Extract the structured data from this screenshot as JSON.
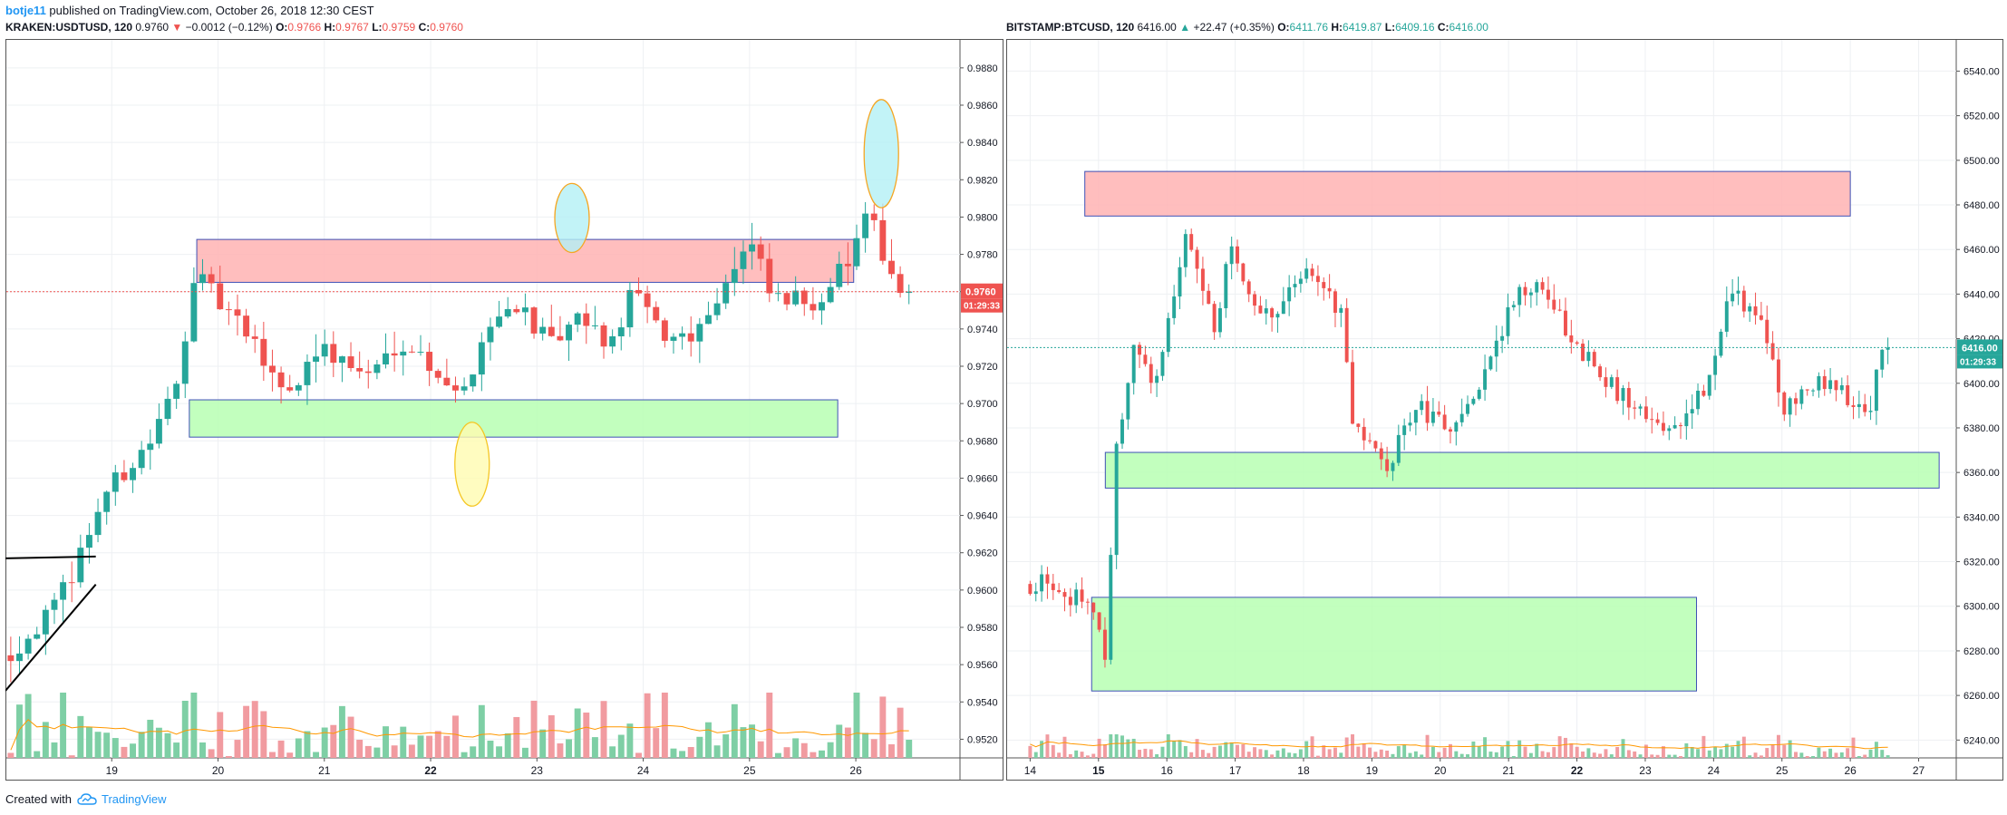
{
  "header": {
    "author": "botje11",
    "published": " published on TradingView.com, October 26, 2018 12:30 CEST"
  },
  "left_legend": {
    "symbol": "KRAKEN:USDTUSD, 120",
    "last": "0.9760",
    "change": "−0.0012 (−0.12%)",
    "o_label": "O:",
    "o": "0.9766",
    "h_label": "H:",
    "h": "0.9767",
    "l_label": "L:",
    "l": "0.9759",
    "c_label": "C:",
    "c": "0.9760",
    "direction": "down"
  },
  "right_legend": {
    "symbol": "BITSTAMP:BTCUSD, 120",
    "last": "6416.00",
    "change": "+22.47 (+0.35%)",
    "o_label": "O:",
    "o": "6411.76",
    "h_label": "H:",
    "h": "6419.87",
    "l_label": "L:",
    "l": "6409.16",
    "c_label": "C:",
    "c": "6416.00",
    "direction": "up"
  },
  "footer": {
    "created_with": "Created with",
    "brand": "TradingView"
  },
  "colors": {
    "up": "#26a69a",
    "down": "#ef5350",
    "up_volume": "#7ecfa5",
    "down_volume": "#f19ba0",
    "resistance_fill": "#ffb3b3",
    "support_fill": "#b7ffb3",
    "zone_border": "#3f51b5",
    "ma_line": "#ff9800",
    "grid": "#eef0f3"
  },
  "chart_data": [
    {
      "type": "candlestick",
      "symbol": "KRAKEN:USDTUSD",
      "interval": "120",
      "x_ticks": [
        "19",
        "20",
        "21",
        "22",
        "23",
        "24",
        "25",
        "26"
      ],
      "bold_x_ticks": [
        "22"
      ],
      "y_ticks": [
        "0.9520",
        "0.9540",
        "0.9560",
        "0.9580",
        "0.9600",
        "0.9620",
        "0.9640",
        "0.9660",
        "0.9680",
        "0.9700",
        "0.9720",
        "0.9740",
        "0.9760",
        "0.9780",
        "0.9800",
        "0.9820",
        "0.9840",
        "0.9860",
        "0.9880"
      ],
      "ylim": [
        0.951,
        0.9895
      ],
      "last_price_label": "0.9760",
      "countdown_label": "01:29:33",
      "price_path": [
        {
          "x": 18.1,
          "y": 0.9565
        },
        {
          "x": 18.55,
          "y": 0.959
        },
        {
          "x": 18.75,
          "y": 0.9615
        },
        {
          "x": 19.0,
          "y": 0.965
        },
        {
          "x": 19.45,
          "y": 0.968
        },
        {
          "x": 19.7,
          "y": 0.971
        },
        {
          "x": 19.85,
          "y": 0.977
        },
        {
          "x": 20.3,
          "y": 0.974
        },
        {
          "x": 20.75,
          "y": 0.9705
        },
        {
          "x": 21.0,
          "y": 0.973
        },
        {
          "x": 21.5,
          "y": 0.9715
        },
        {
          "x": 21.8,
          "y": 0.9735
        },
        {
          "x": 22.2,
          "y": 0.9715
        },
        {
          "x": 22.35,
          "y": 0.97
        },
        {
          "x": 22.6,
          "y": 0.974
        },
        {
          "x": 22.9,
          "y": 0.9755
        },
        {
          "x": 23.2,
          "y": 0.973
        },
        {
          "x": 23.5,
          "y": 0.9745
        },
        {
          "x": 23.8,
          "y": 0.973
        },
        {
          "x": 23.95,
          "y": 0.976
        },
        {
          "x": 24.3,
          "y": 0.9735
        },
        {
          "x": 24.6,
          "y": 0.974
        },
        {
          "x": 24.9,
          "y": 0.977
        },
        {
          "x": 25.1,
          "y": 0.9785
        },
        {
          "x": 25.3,
          "y": 0.9755
        },
        {
          "x": 25.7,
          "y": 0.9755
        },
        {
          "x": 26.0,
          "y": 0.9775
        },
        {
          "x": 26.2,
          "y": 0.98
        },
        {
          "x": 26.5,
          "y": 0.976
        }
      ],
      "resistance_zone": {
        "x": [
          19.8,
          25.98
        ],
        "y": [
          0.9765,
          0.9788
        ]
      },
      "support_zone": {
        "x": [
          19.73,
          25.83
        ],
        "y": [
          0.9682,
          0.9702
        ]
      },
      "highlight_ellipses": [
        {
          "kind": "top",
          "x": 23.33,
          "y_range": [
            0.9781,
            0.9818
          ],
          "fill": "#b3f0f5",
          "stroke": "#f5a623"
        },
        {
          "kind": "top",
          "x": 26.24,
          "y_range": [
            0.9805,
            0.9863
          ],
          "fill": "#b3f0f5",
          "stroke": "#f5a623"
        },
        {
          "kind": "bottom",
          "x": 22.39,
          "y_range": [
            0.9645,
            0.969
          ],
          "fill": "#fffbb0",
          "stroke": "#f5c623"
        }
      ],
      "trend_lines": [
        {
          "from": [
            18.0,
            0.9617
          ],
          "to": [
            18.85,
            0.9618
          ]
        },
        {
          "from": [
            18.0,
            0.9546
          ],
          "to": [
            18.85,
            0.9603
          ]
        }
      ]
    },
    {
      "type": "candlestick",
      "symbol": "BITSTAMP:BTCUSD",
      "interval": "120",
      "x_ticks": [
        "14",
        "15",
        "16",
        "17",
        "18",
        "19",
        "20",
        "21",
        "22",
        "23",
        "24",
        "25",
        "26",
        "27"
      ],
      "bold_x_ticks": [
        "15",
        "22"
      ],
      "y_ticks": [
        "6240.00",
        "6260.00",
        "6280.00",
        "6300.00",
        "6320.00",
        "6340.00",
        "6360.00",
        "6380.00",
        "6400.00",
        "6420.00",
        "6440.00",
        "6460.00",
        "6480.00",
        "6500.00",
        "6520.00",
        "6540.00"
      ],
      "ylim": [
        6232,
        6554
      ],
      "last_price_label": "6416.00",
      "countdown_label": "01:29:33",
      "price_path": [
        {
          "x": 14.3,
          "y": 6310
        },
        {
          "x": 15.0,
          "y": 6300
        },
        {
          "x": 15.2,
          "y": 6270
        },
        {
          "x": 15.3,
          "y": 6360
        },
        {
          "x": 15.6,
          "y": 6420
        },
        {
          "x": 15.9,
          "y": 6400
        },
        {
          "x": 16.2,
          "y": 6440
        },
        {
          "x": 16.35,
          "y": 6470
        },
        {
          "x": 16.8,
          "y": 6420
        },
        {
          "x": 17.0,
          "y": 6460
        },
        {
          "x": 17.5,
          "y": 6430
        },
        {
          "x": 17.9,
          "y": 6440
        },
        {
          "x": 18.2,
          "y": 6450
        },
        {
          "x": 18.65,
          "y": 6430
        },
        {
          "x": 18.8,
          "y": 6380
        },
        {
          "x": 19.3,
          "y": 6360
        },
        {
          "x": 19.7,
          "y": 6390
        },
        {
          "x": 20.2,
          "y": 6380
        },
        {
          "x": 20.7,
          "y": 6400
        },
        {
          "x": 21.2,
          "y": 6440
        },
        {
          "x": 21.6,
          "y": 6445
        },
        {
          "x": 22.0,
          "y": 6420
        },
        {
          "x": 22.7,
          "y": 6395
        },
        {
          "x": 23.5,
          "y": 6380
        },
        {
          "x": 24.0,
          "y": 6400
        },
        {
          "x": 24.3,
          "y": 6440
        },
        {
          "x": 24.8,
          "y": 6430
        },
        {
          "x": 25.1,
          "y": 6390
        },
        {
          "x": 25.6,
          "y": 6400
        },
        {
          "x": 26.0,
          "y": 6395
        },
        {
          "x": 26.35,
          "y": 6385
        },
        {
          "x": 26.5,
          "y": 6416
        }
      ],
      "resistance_zone": {
        "x": [
          14.8,
          26.0
        ],
        "y": [
          6475,
          6495
        ]
      },
      "support_zones": [
        {
          "x": [
            15.1,
            27.3
          ],
          "y": [
            6353,
            6369
          ]
        },
        {
          "x": [
            14.9,
            23.75
          ],
          "y": [
            6262,
            6304
          ]
        }
      ]
    }
  ]
}
